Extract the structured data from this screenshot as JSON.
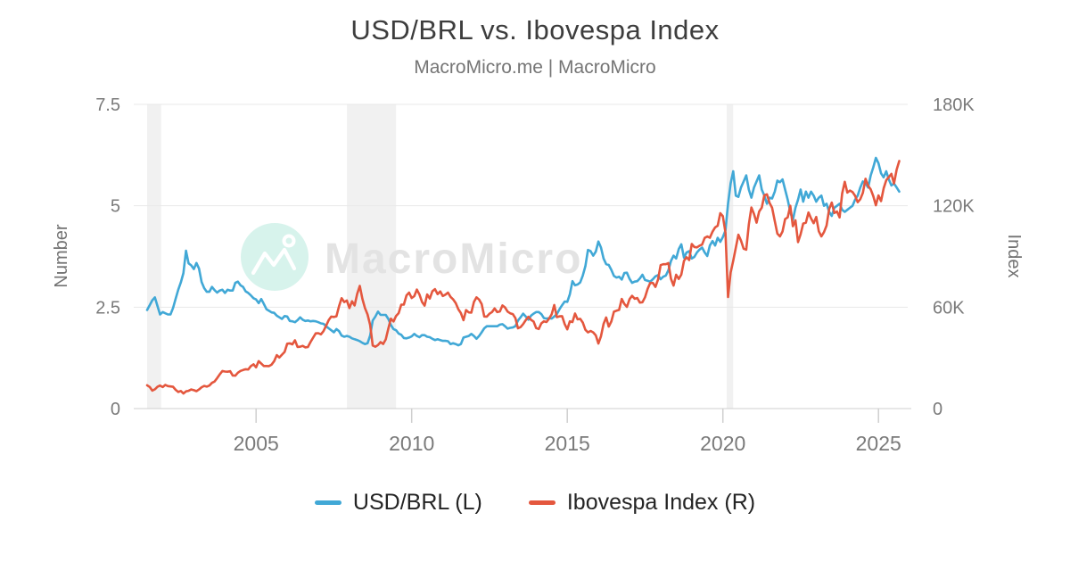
{
  "title": "USD/BRL vs. Ibovespa Index",
  "subtitle": "MacroMicro.me | MacroMicro",
  "watermark": {
    "text": "MacroMicro"
  },
  "colors": {
    "usdbrl": "#41A8D6",
    "ibovespa": "#E4573E",
    "watermark_circle": "#D7F3EC",
    "watermark_logo": "#FFFFFF",
    "watermark_text": "#E3E3E3",
    "grid": "#E8E8E8",
    "axis": "#CFCFCF",
    "band": "#F1F1F1",
    "tick_text": "#7A7A7A",
    "axis_title_text": "#737373"
  },
  "legend": [
    {
      "label": "USD/BRL (L)",
      "color_key": "usdbrl"
    },
    {
      "label": "Ibovespa Index (R)",
      "color_key": "ibovespa"
    }
  ],
  "chart_data": {
    "type": "line",
    "interval": "monthly",
    "x_start": {
      "year": 2001,
      "month": 7
    },
    "x_axis": {
      "range": [
        2001.07,
        2025.94
      ],
      "ticks": [
        "2005",
        "2010",
        "2015",
        "2020",
        "2025"
      ],
      "tick_values": [
        2005,
        2010,
        2015,
        2020,
        2025
      ]
    },
    "y_left": {
      "label": "Number",
      "range": [
        0,
        7.5
      ],
      "ticks": [
        "0",
        "2.5",
        "5",
        "7.5"
      ],
      "tick_values": [
        0,
        2.5,
        5,
        7.5
      ]
    },
    "y_right": {
      "label": "Index",
      "unit": "thousand points",
      "range": [
        0,
        180
      ],
      "ticks": [
        "0",
        "60K",
        "120K",
        "180K"
      ],
      "tick_values": [
        0,
        60,
        120,
        180
      ]
    },
    "bands_x": [
      [
        2001.5,
        2001.95
      ],
      [
        2007.92,
        2009.5
      ],
      [
        2020.12,
        2020.33
      ]
    ],
    "series": [
      {
        "name": "USD/BRL (L)",
        "axis": "left",
        "color_key": "usdbrl",
        "values": [
          2.43,
          2.55,
          2.67,
          2.74,
          2.53,
          2.32,
          2.38,
          2.35,
          2.32,
          2.32,
          2.48,
          2.71,
          2.93,
          3.11,
          3.34,
          3.89,
          3.58,
          3.53,
          3.44,
          3.59,
          3.45,
          3.12,
          2.97,
          2.88,
          2.88,
          3.0,
          2.92,
          2.86,
          2.91,
          2.93,
          2.85,
          2.93,
          2.91,
          2.91,
          3.1,
          3.13,
          3.04,
          3.0,
          2.89,
          2.85,
          2.79,
          2.72,
          2.69,
          2.6,
          2.7,
          2.58,
          2.45,
          2.41,
          2.37,
          2.36,
          2.29,
          2.25,
          2.21,
          2.28,
          2.27,
          2.16,
          2.15,
          2.13,
          2.18,
          2.25,
          2.19,
          2.16,
          2.17,
          2.15,
          2.16,
          2.15,
          2.13,
          2.1,
          2.09,
          2.03,
          1.98,
          1.93,
          1.88,
          1.96,
          1.91,
          1.8,
          1.77,
          1.79,
          1.77,
          1.73,
          1.71,
          1.69,
          1.66,
          1.62,
          1.59,
          1.61,
          1.8,
          2.17,
          2.27,
          2.39,
          2.31,
          2.31,
          2.31,
          2.21,
          2.06,
          1.96,
          1.93,
          1.85,
          1.82,
          1.74,
          1.73,
          1.75,
          1.78,
          1.84,
          1.79,
          1.76,
          1.81,
          1.81,
          1.77,
          1.76,
          1.72,
          1.69,
          1.71,
          1.69,
          1.67,
          1.67,
          1.66,
          1.59,
          1.61,
          1.59,
          1.56,
          1.59,
          1.75,
          1.77,
          1.79,
          1.84,
          1.79,
          1.72,
          1.79,
          1.88,
          1.98,
          2.03,
          2.03,
          2.03,
          2.03,
          2.03,
          2.07,
          2.08,
          2.03,
          1.97,
          1.99,
          2.0,
          2.03,
          2.17,
          2.25,
          2.34,
          2.27,
          2.19,
          2.29,
          2.34,
          2.38,
          2.38,
          2.33,
          2.23,
          2.22,
          2.23,
          2.22,
          2.27,
          2.33,
          2.45,
          2.55,
          2.64,
          2.63,
          2.82,
          3.14,
          3.04,
          3.06,
          3.11,
          3.28,
          3.51,
          3.91,
          3.88,
          3.77,
          3.87,
          4.12,
          3.97,
          3.7,
          3.56,
          3.54,
          3.42,
          3.27,
          3.23,
          3.25,
          3.18,
          3.34,
          3.35,
          3.2,
          3.1,
          3.13,
          3.14,
          3.21,
          3.3,
          3.17,
          3.15,
          3.13,
          3.19,
          3.26,
          3.29,
          3.19,
          3.25,
          3.28,
          3.41,
          3.64,
          3.77,
          3.7,
          3.93,
          4.05,
          3.72,
          3.85,
          3.88,
          3.7,
          3.74,
          3.85,
          3.92,
          3.97,
          3.85,
          3.76,
          4.02,
          4.13,
          4.02,
          4.21,
          4.11,
          4.23,
          4.39,
          5.05,
          5.55,
          5.85,
          5.25,
          5.22,
          5.45,
          5.6,
          5.75,
          5.4,
          5.2,
          5.45,
          5.6,
          5.75,
          5.4,
          5.25,
          5.05,
          5.2,
          5.18,
          5.35,
          5.62,
          5.58,
          5.65,
          5.4,
          5.15,
          4.85,
          4.65,
          4.95,
          5.15,
          5.4,
          5.1,
          5.35,
          5.2,
          5.35,
          5.25,
          5.1,
          5.2,
          5.25,
          5.0,
          5.05,
          4.85,
          4.75,
          4.95,
          5.0,
          5.05,
          4.9,
          4.85,
          4.9,
          4.95,
          5.0,
          5.15,
          5.25,
          5.45,
          5.6,
          5.55,
          5.45,
          5.75,
          5.95,
          6.18,
          6.05,
          5.8,
          5.7,
          5.85,
          5.65,
          5.5,
          5.55,
          5.45,
          5.35
        ]
      },
      {
        "name": "Ibovespa Index (R)",
        "axis": "right",
        "color_key": "ibovespa",
        "values": [
          13.8,
          12.8,
          10.6,
          11.4,
          12.9,
          13.6,
          12.7,
          14.0,
          13.3,
          13.1,
          12.9,
          11.1,
          9.8,
          10.4,
          8.9,
          10.2,
          10.5,
          11.3,
          10.9,
          10.3,
          11.3,
          12.6,
          13.4,
          13.0,
          13.6,
          15.2,
          16.0,
          18.0,
          20.2,
          22.2,
          21.9,
          21.8,
          22.1,
          19.6,
          19.5,
          21.2,
          22.3,
          22.8,
          23.3,
          23.1,
          25.1,
          26.2,
          24.4,
          28.1,
          26.6,
          25.2,
          25.2,
          25.1,
          26.0,
          28.1,
          31.6,
          30.2,
          31.9,
          33.5,
          38.4,
          38.6,
          38.0,
          40.4,
          36.5,
          36.6,
          37.1,
          36.2,
          36.4,
          39.3,
          41.9,
          44.5,
          44.6,
          43.9,
          45.8,
          49.0,
          52.3,
          54.4,
          54.2,
          54.6,
          60.5,
          65.3,
          63.0,
          63.9,
          59.5,
          63.5,
          61.0,
          67.9,
          72.6,
          65.0,
          59.5,
          55.7,
          49.5,
          37.3,
          36.6,
          37.6,
          39.3,
          38.2,
          40.9,
          47.3,
          53.2,
          51.5,
          54.8,
          56.5,
          61.5,
          61.5,
          67.0,
          68.6,
          65.4,
          66.5,
          70.4,
          67.5,
          63.1,
          60.9,
          67.5,
          65.1,
          69.4,
          70.7,
          67.7,
          69.3,
          66.6,
          67.4,
          68.6,
          66.1,
          64.6,
          62.4,
          58.8,
          56.5,
          52.3,
          58.3,
          56.9,
          56.8,
          63.1,
          65.8,
          64.5,
          61.8,
          54.5,
          54.4,
          56.1,
          57.1,
          59.2,
          57.1,
          57.5,
          61.0,
          59.8,
          57.4,
          56.4,
          55.9,
          53.5,
          47.5,
          48.2,
          50.0,
          52.3,
          54.3,
          52.5,
          51.5,
          47.6,
          47.1,
          50.4,
          51.6,
          51.2,
          53.2,
          55.8,
          61.3,
          54.1,
          54.6,
          54.7,
          50.0,
          46.9,
          51.6,
          51.2,
          56.2,
          52.8,
          53.1,
          50.9,
          46.6,
          45.1,
          45.9,
          45.1,
          43.3,
          38.5,
          42.8,
          50.1,
          53.9,
          48.5,
          51.5,
          57.3,
          57.9,
          58.4,
          64.9,
          61.9,
          60.2,
          64.7,
          66.7,
          65.0,
          65.4,
          62.7,
          62.9,
          65.9,
          70.8,
          74.3,
          74.3,
          72.0,
          76.4,
          84.9,
          85.4,
          85.4,
          86.1,
          76.8,
          72.8,
          79.2,
          76.7,
          79.3,
          87.4,
          89.5,
          87.9,
          97.4,
          95.6,
          95.4,
          96.4,
          97.0,
          101.0,
          101.8,
          101.1,
          104.7,
          107.2,
          108.2,
          115.6,
          113.8,
          104.2,
          66.0,
          80.5,
          87.4,
          95.1,
          102.9,
          99.4,
          94.6,
          94.0,
          108.9,
          119.0,
          115.1,
          110.0,
          116.6,
          118.9,
          126.2,
          126.8,
          121.8,
          118.8,
          111.0,
          103.5,
          101.9,
          104.8,
          112.1,
          113.1,
          120.0,
          107.9,
          111.4,
          98.5,
          103.2,
          109.5,
          110.0,
          116.0,
          112.5,
          109.7,
          113.4,
          104.9,
          101.9,
          104.4,
          108.3,
          118.1,
          121.9,
          115.7,
          116.6,
          113.1,
          127.3,
          134.2,
          127.8,
          129.0,
          128.1,
          125.9,
          122.1,
          123.9,
          127.7,
          136.0,
          131.8,
          129.7,
          125.7,
          120.3,
          126.1,
          122.8,
          130.3,
          135.1,
          137.0,
          138.9,
          133.1,
          141.4,
          146.5
        ]
      }
    ]
  }
}
